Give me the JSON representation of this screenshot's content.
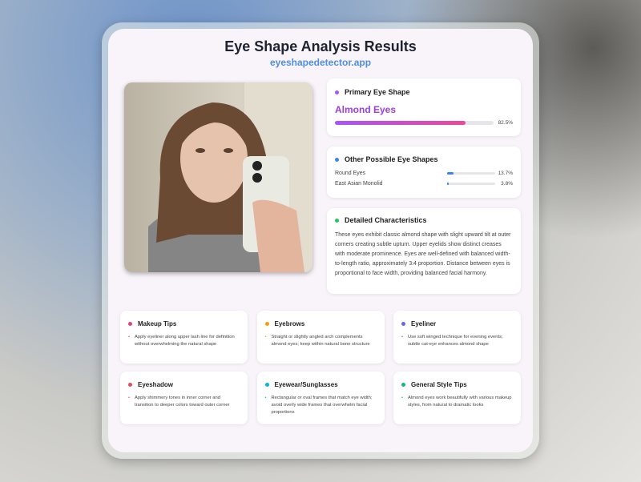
{
  "header": {
    "title": "Eye Shape Analysis Results",
    "site": "eyeshapedetector.app"
  },
  "primary": {
    "heading": "Primary Eye Shape",
    "shape": "Almond Eyes",
    "percent": 82.5,
    "percent_label": "82.5%",
    "color": "#a855f7"
  },
  "others": {
    "heading": "Other Possible Eye Shapes",
    "color": "#3b82f6",
    "items": [
      {
        "name": "Round Eyes",
        "percent": 13.7,
        "label": "13.7%"
      },
      {
        "name": "East Asian Monolid",
        "percent": 3.8,
        "label": "3.8%"
      }
    ]
  },
  "details": {
    "heading": "Detailed Characteristics",
    "color": "#22c55e",
    "text": "These eyes exhibit classic almond shape with slight upward tilt at outer corners creating subtle upturn. Upper eyelids show distinct creases with moderate prominence. Eyes are well-defined with balanced width-to-length ratio, approximately 3:4 proportion. Distance between eyes is proportional to face width, providing balanced facial harmony."
  },
  "tips": [
    {
      "title": "Makeup Tips",
      "color": "#e0457f",
      "text": "Apply eyeliner along upper lash line for definition without overwhelming the natural shape"
    },
    {
      "title": "Eyebrows",
      "color": "#f59e0b",
      "text": "Straight or slightly angled arch complements almond eyes; keep within natural bone structure"
    },
    {
      "title": "Eyeliner",
      "color": "#6366f1",
      "text": "Use soft winged technique for evening events; subtle cat-eye enhances almond shape"
    },
    {
      "title": "Eyeshadow",
      "color": "#e84a62",
      "text": "Apply shimmery tones in inner corner and transition to deeper colors toward outer corner"
    },
    {
      "title": "Eyewear/Sunglasses",
      "color": "#06b6d4",
      "text": "Rectangular or oval frames that match eye width; avoid overly wide frames that overwhelm facial proportions"
    },
    {
      "title": "General Style Tips",
      "color": "#10b981",
      "text": "Almond eyes work beautifully with various makeup styles, from natural to dramatic looks"
    }
  ]
}
